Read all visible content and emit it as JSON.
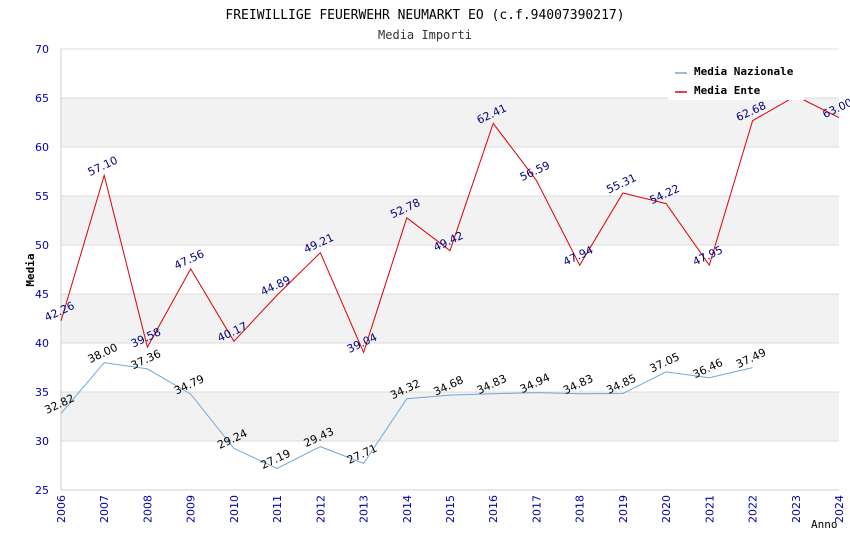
{
  "chart_data": {
    "type": "line",
    "title": "FREIWILLIGE FEUERWEHR NEUMARKT EO (c.f.94007390217)",
    "subtitle": "Media Importi",
    "xlabel": "Anno",
    "ylabel": "Media",
    "ylim": [
      25,
      70
    ],
    "yticks": [
      "25",
      "30",
      "35",
      "40",
      "45",
      "50",
      "55",
      "60",
      "65",
      "70"
    ],
    "categories": [
      "2006",
      "2007",
      "2008",
      "2009",
      "2010",
      "2011",
      "2012",
      "2013",
      "2014",
      "2015",
      "2016",
      "2017",
      "2018",
      "2019",
      "2020",
      "2021",
      "2022",
      "2023",
      "2024"
    ],
    "grid": true,
    "legend_position": "top-right",
    "series": [
      {
        "name": "Media Nazionale",
        "color": "#6fa8dc",
        "label_color": "#000000",
        "values": [
          32.82,
          38.0,
          37.36,
          34.79,
          29.24,
          27.19,
          29.43,
          27.71,
          34.32,
          34.68,
          34.83,
          34.94,
          34.83,
          34.85,
          37.05,
          36.46,
          37.49,
          null,
          null
        ],
        "labels": [
          "32.82",
          "38.00",
          "37.36",
          "34.79",
          "29.24",
          "27.19",
          "29.43",
          "27.71",
          "34.32",
          "34.68",
          "34.83",
          "34.94",
          "34.83",
          "34.85",
          "37.05",
          "36.46",
          "37.49",
          null,
          null
        ]
      },
      {
        "name": "Media Ente",
        "color": "#dd0000",
        "label_color": "#000080",
        "values": [
          42.26,
          57.1,
          39.58,
          47.56,
          40.17,
          44.89,
          49.21,
          39.04,
          52.78,
          49.42,
          62.41,
          56.59,
          47.94,
          55.31,
          54.22,
          47.95,
          62.68,
          65.2,
          63.0
        ],
        "labels": [
          "42.26",
          "57.10",
          "39.58",
          "47.56",
          "40.17",
          "44.89",
          "49.21",
          "39.04",
          "52.78",
          "49.42",
          "62.41",
          "56.59",
          "47.94",
          "55.31",
          "54.22",
          "47.95",
          "62.68",
          null,
          "63.00"
        ]
      }
    ]
  }
}
